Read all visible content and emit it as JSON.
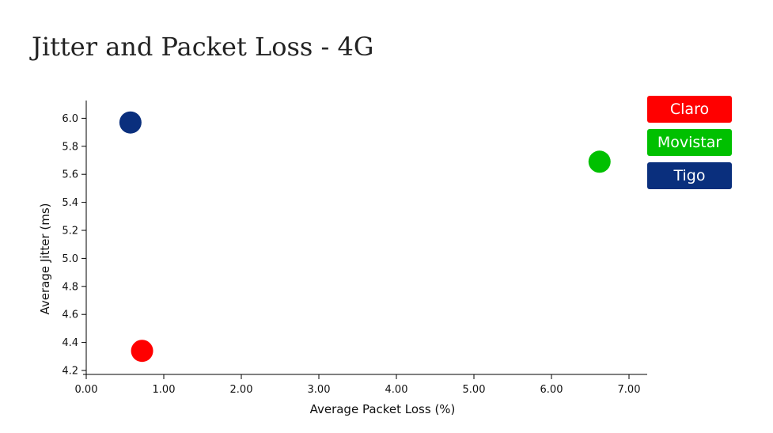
{
  "chart_data": {
    "type": "scatter",
    "title": "Jitter and Packet Loss - 4G",
    "xlabel": "Average Packet Loss (%)",
    "ylabel": "Average Jitter (ms)",
    "xlim": [
      0,
      7.25
    ],
    "ylim": [
      4.18,
      6.14
    ],
    "x_ticks": [
      "0.00",
      "1.00",
      "2.00",
      "3.00",
      "4.00",
      "5.00",
      "6.00",
      "7.00"
    ],
    "x_tick_values": [
      0,
      1,
      2,
      3,
      4,
      5,
      6,
      7
    ],
    "y_ticks": [
      "4.2",
      "4.4",
      "4.6",
      "4.8",
      "5.0",
      "5.2",
      "5.4",
      "5.6",
      "5.8",
      "6.0"
    ],
    "y_tick_values": [
      4.2,
      4.4,
      4.6,
      4.8,
      5.0,
      5.2,
      5.4,
      5.6,
      5.8,
      6.0
    ],
    "grid": false,
    "legend_position": "top-right",
    "series": [
      {
        "name": "Claro",
        "color": "#ff0000",
        "x": [
          0.72
        ],
        "y": [
          4.34
        ]
      },
      {
        "name": "Movistar",
        "color": "#00c000",
        "x": [
          6.62
        ],
        "y": [
          5.69
        ]
      },
      {
        "name": "Tigo",
        "color": "#0a2f7d",
        "x": [
          0.57
        ],
        "y": [
          5.97
        ]
      }
    ]
  }
}
